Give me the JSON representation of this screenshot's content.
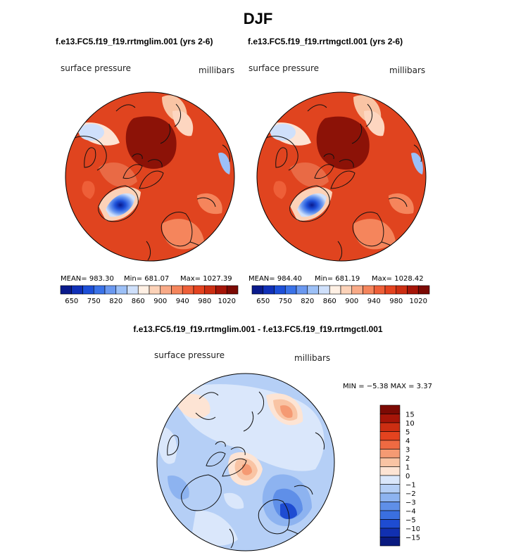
{
  "figure": {
    "title": "DJF",
    "case_a": "f.e13.FC5.f19_f19.rrtmglim.001 (yrs 2-6)",
    "case_b": "f.e13.FC5.f19_f19.rrtmgctl.001 (yrs 2-6)",
    "diff_title": "f.e13.FC5.f19_f19.rrtmglim.001 - f.e13.FC5.f19_f19.rrtmgctl.001"
  },
  "chart_data": [
    {
      "type": "heatmap",
      "panel": "case_a",
      "variable": "surface pressure",
      "units": "millibars",
      "projection": "north polar stereographic",
      "stats": {
        "mean": "983.30",
        "min": "681.07",
        "max": "1027.39"
      },
      "mean_label": "MEAN= 983.30",
      "min_label": "Min= 681.07",
      "max_label": "Max= 1027.39",
      "colorbar": {
        "levels": [
          650,
          700,
          750,
          800,
          820,
          840,
          860,
          880,
          900,
          920,
          940,
          960,
          980,
          1000,
          1020
        ],
        "tick_labels": [
          "650",
          "750",
          "820",
          "860",
          "900",
          "940",
          "980",
          "1020"
        ],
        "colors": [
          "#0a1a8c",
          "#1030b8",
          "#1d4fd8",
          "#3a72e8",
          "#6a98f0",
          "#9cc0f7",
          "#cfe0fb",
          "#fff0e4",
          "#fcd2b8",
          "#f9aa87",
          "#f5855c",
          "#ee5f38",
          "#e4431f",
          "#cc2e12",
          "#a61508",
          "#7c0a04"
        ]
      }
    },
    {
      "type": "heatmap",
      "panel": "case_b",
      "variable": "surface pressure",
      "units": "millibars",
      "projection": "north polar stereographic",
      "stats": {
        "mean": "984.40",
        "min": "681.19",
        "max": "1028.42"
      },
      "mean_label": "MEAN= 984.40",
      "min_label": "Min= 681.19",
      "max_label": "Max= 1028.42",
      "colorbar": {
        "levels": [
          650,
          700,
          750,
          800,
          820,
          840,
          860,
          880,
          900,
          920,
          940,
          960,
          980,
          1000,
          1020
        ],
        "tick_labels": [
          "650",
          "750",
          "820",
          "860",
          "900",
          "940",
          "980",
          "1020"
        ],
        "colors": [
          "#0a1a8c",
          "#1030b8",
          "#1d4fd8",
          "#3a72e8",
          "#6a98f0",
          "#9cc0f7",
          "#cfe0fb",
          "#fff0e4",
          "#fcd2b8",
          "#f9aa87",
          "#f5855c",
          "#ee5f38",
          "#e4431f",
          "#cc2e12",
          "#a61508",
          "#7c0a04"
        ]
      }
    },
    {
      "type": "heatmap",
      "panel": "difference",
      "variable": "surface pressure",
      "units": "millibars",
      "projection": "north polar stereographic",
      "stats": {
        "min": "-5.38",
        "max": "3.37"
      },
      "minmax_label": "MIN =  −5.38 MAX =   3.37",
      "colorbar": {
        "levels": [
          15,
          10,
          5,
          4,
          3,
          2,
          1,
          0,
          -1,
          -2,
          -3,
          -4,
          -5,
          -10,
          -15
        ],
        "tick_labels": [
          "15",
          "10",
          "5",
          "4",
          "3",
          "2",
          "1",
          "0",
          "−1",
          "−2",
          "−3",
          "−4",
          "−5",
          "−10",
          "−15"
        ],
        "colors": [
          "#7c0a04",
          "#a61508",
          "#cc2e12",
          "#e4431f",
          "#ee6a42",
          "#f59a73",
          "#f9c4a4",
          "#fde4d4",
          "#dae7fb",
          "#b5cff6",
          "#8db3f0",
          "#5f8fe8",
          "#3a6fe0",
          "#1e4cd2",
          "#1130b0",
          "#0a1a80"
        ]
      }
    }
  ]
}
